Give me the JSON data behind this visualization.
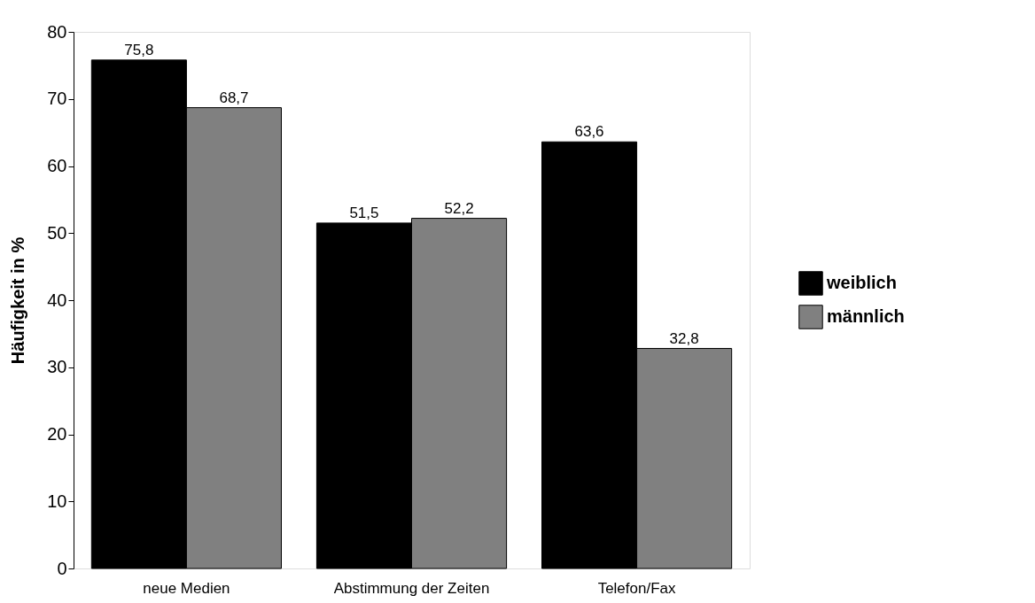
{
  "chart_data": {
    "type": "bar",
    "ylabel": "Häufigkeit in %",
    "categories": [
      "neue Medien",
      "Abstimmung der Zeiten",
      "Telefon/Fax"
    ],
    "series": [
      {
        "name": "weiblich",
        "color": "#000000",
        "values": [
          75.8,
          51.5,
          63.6
        ],
        "value_labels": [
          "75,8",
          "51,5",
          "63,6"
        ]
      },
      {
        "name": "männlich",
        "color": "#808080",
        "values": [
          68.7,
          52.2,
          32.8
        ],
        "value_labels": [
          "68,7",
          "52,2",
          "32,8"
        ]
      }
    ],
    "ylim": [
      0,
      80
    ],
    "yticks": [
      0,
      10,
      20,
      30,
      40,
      50,
      60,
      70,
      80
    ],
    "grid": false,
    "legend": "right"
  }
}
